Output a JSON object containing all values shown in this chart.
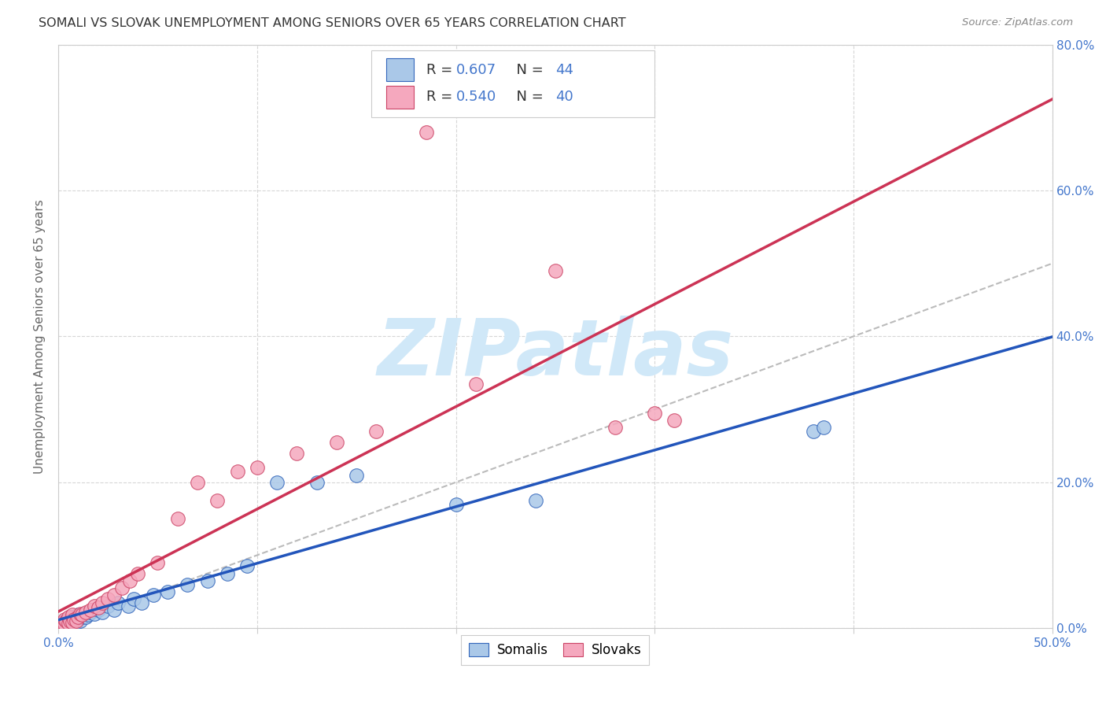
{
  "title": "SOMALI VS SLOVAK UNEMPLOYMENT AMONG SENIORS OVER 65 YEARS CORRELATION CHART",
  "source": "Source: ZipAtlas.com",
  "ylabel": "Unemployment Among Seniors over 65 years",
  "xlim": [
    0.0,
    0.5
  ],
  "ylim": [
    0.0,
    0.8
  ],
  "xtick_vals": [
    0.0,
    0.1,
    0.2,
    0.3,
    0.4,
    0.5
  ],
  "xtick_labels": [
    "0.0%",
    "",
    "",
    "",
    "",
    "50.0%"
  ],
  "ytick_vals": [
    0.0,
    0.2,
    0.4,
    0.6,
    0.8
  ],
  "ytick_labels": [
    "0.0%",
    "20.0%",
    "40.0%",
    "60.0%",
    "80.0%"
  ],
  "somali_face_color": "#aac8e8",
  "somali_edge_color": "#3366bb",
  "slovak_face_color": "#f5a8be",
  "slovak_edge_color": "#cc4466",
  "somali_line_color": "#2255bb",
  "slovak_line_color": "#cc3355",
  "diag_line_color": "#bbbbbb",
  "watermark": "ZIPatlas",
  "watermark_color": "#d0e8f8",
  "bg_color": "#ffffff",
  "grid_color": "#cccccc",
  "axis_tick_color": "#4477cc",
  "title_color": "#333333",
  "source_color": "#888888",
  "somali_x": [
    0.001,
    0.002,
    0.003,
    0.003,
    0.004,
    0.004,
    0.005,
    0.005,
    0.006,
    0.006,
    0.007,
    0.007,
    0.008,
    0.009,
    0.01,
    0.01,
    0.011,
    0.012,
    0.013,
    0.014,
    0.015,
    0.016,
    0.018,
    0.02,
    0.022,
    0.025,
    0.028,
    0.03,
    0.035,
    0.038,
    0.042,
    0.048,
    0.055,
    0.065,
    0.075,
    0.085,
    0.095,
    0.11,
    0.13,
    0.15,
    0.2,
    0.24,
    0.38,
    0.385
  ],
  "somali_y": [
    0.005,
    0.008,
    0.006,
    0.01,
    0.007,
    0.012,
    0.005,
    0.01,
    0.008,
    0.015,
    0.006,
    0.012,
    0.01,
    0.008,
    0.012,
    0.018,
    0.01,
    0.015,
    0.02,
    0.015,
    0.018,
    0.022,
    0.02,
    0.025,
    0.022,
    0.03,
    0.025,
    0.035,
    0.03,
    0.04,
    0.035,
    0.045,
    0.05,
    0.06,
    0.065,
    0.075,
    0.085,
    0.2,
    0.2,
    0.21,
    0.17,
    0.175,
    0.27,
    0.275
  ],
  "slovak_x": [
    0.001,
    0.002,
    0.003,
    0.003,
    0.004,
    0.005,
    0.005,
    0.006,
    0.007,
    0.007,
    0.008,
    0.009,
    0.01,
    0.011,
    0.012,
    0.014,
    0.016,
    0.018,
    0.02,
    0.022,
    0.025,
    0.028,
    0.032,
    0.036,
    0.04,
    0.05,
    0.06,
    0.07,
    0.08,
    0.09,
    0.1,
    0.12,
    0.14,
    0.16,
    0.185,
    0.21,
    0.25,
    0.28,
    0.3,
    0.31
  ],
  "slovak_y": [
    0.005,
    0.008,
    0.006,
    0.012,
    0.01,
    0.007,
    0.015,
    0.01,
    0.008,
    0.018,
    0.012,
    0.01,
    0.015,
    0.02,
    0.018,
    0.022,
    0.025,
    0.03,
    0.028,
    0.035,
    0.04,
    0.045,
    0.055,
    0.065,
    0.075,
    0.09,
    0.15,
    0.2,
    0.175,
    0.215,
    0.22,
    0.24,
    0.255,
    0.27,
    0.68,
    0.335,
    0.49,
    0.275,
    0.295,
    0.285
  ]
}
